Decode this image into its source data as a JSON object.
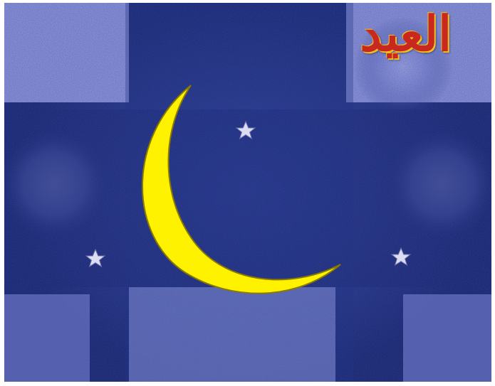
{
  "greeting": {
    "title": "العيد"
  },
  "colors": {
    "background_dark": "#16236e",
    "background_light": "#a9aef0",
    "crescent": "#fff200",
    "crescent_outline": "#8a7a00",
    "star": "#d8d8f0",
    "title_text": "#c8281e",
    "title_outline": "#f0c020"
  },
  "icons": [
    "crescent-moon-icon",
    "star-icon",
    "star-icon",
    "star-icon"
  ]
}
